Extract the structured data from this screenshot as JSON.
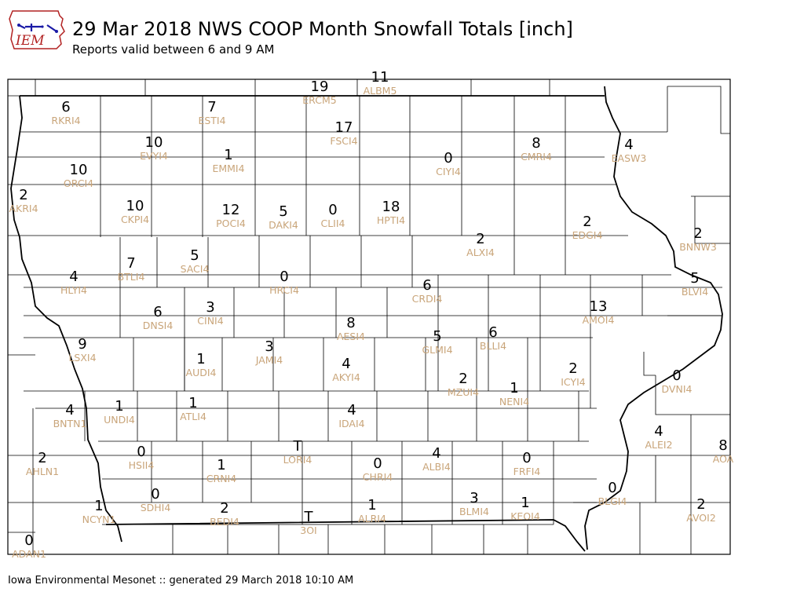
{
  "header": {
    "title": "29 Mar 2018 NWS COOP Month Snowfall Totals [inch]",
    "subtitle": "Reports valid between 6 and 9 AM",
    "logo_text": "IEM"
  },
  "footer": {
    "text": "Iowa Environmental Mesonet :: generated 29 March 2018 10:10 AM"
  },
  "colors": {
    "value": "#000000",
    "station_id": "#c9a57a",
    "logo_red": "#b22222",
    "logo_blue": "#1a1aa6"
  },
  "stations": [
    {
      "value": "19",
      "id": "ERCM5"
    },
    {
      "value": "11",
      "id": "ALBM5"
    },
    {
      "value": "6",
      "id": "RKRI4"
    },
    {
      "value": "7",
      "id": "ESTI4"
    },
    {
      "value": "17",
      "id": "FSCI4"
    },
    {
      "value": "0",
      "id": "CIYI4"
    },
    {
      "value": "8",
      "id": "CMRI4"
    },
    {
      "value": "4",
      "id": "EASW3"
    },
    {
      "value": "10",
      "id": "EVYI4"
    },
    {
      "value": "1",
      "id": "EMMI4"
    },
    {
      "value": "10",
      "id": "ORCI4"
    },
    {
      "value": "2",
      "id": "AKRI4"
    },
    {
      "value": "10",
      "id": "CKPI4"
    },
    {
      "value": "12",
      "id": "POCI4"
    },
    {
      "value": "5",
      "id": "DAKI4"
    },
    {
      "value": "0",
      "id": "CLII4"
    },
    {
      "value": "18",
      "id": "HPTI4"
    },
    {
      "value": "2",
      "id": "EDGI4"
    },
    {
      "value": "2",
      "id": "BNNW3"
    },
    {
      "value": "2",
      "id": "ALXI4"
    },
    {
      "value": "7",
      "id": "BTLI4"
    },
    {
      "value": "5",
      "id": "SACI4"
    },
    {
      "value": "4",
      "id": "HLYI4"
    },
    {
      "value": "0",
      "id": "HRCI4"
    },
    {
      "value": "6",
      "id": "CRDI4"
    },
    {
      "value": "13",
      "id": "AMOI4"
    },
    {
      "value": "5",
      "id": "BLVI4"
    },
    {
      "value": "6",
      "id": "DNSI4"
    },
    {
      "value": "3",
      "id": "CINI4"
    },
    {
      "value": "8",
      "id": "AESI4"
    },
    {
      "value": "9",
      "id": "LSXI4"
    },
    {
      "value": "1",
      "id": "AUDI4"
    },
    {
      "value": "3",
      "id": "JAMI4"
    },
    {
      "value": "5",
      "id": "GLMI4"
    },
    {
      "value": "6",
      "id": "BLLI4"
    },
    {
      "value": "4",
      "id": "AKYI4"
    },
    {
      "value": "2",
      "id": "MZUI4"
    },
    {
      "value": "1",
      "id": "NENI4"
    },
    {
      "value": "2",
      "id": "ICYI4"
    },
    {
      "value": "0",
      "id": "DVNI4"
    },
    {
      "value": "4",
      "id": "BNTN1"
    },
    {
      "value": "1",
      "id": "UNDI4"
    },
    {
      "value": "1",
      "id": "ATLI4"
    },
    {
      "value": "4",
      "id": "IDAI4"
    },
    {
      "value": "4",
      "id": "ALEI2"
    },
    {
      "value": "T",
      "id": "LORI4"
    },
    {
      "value": "0",
      "id": "HSII4"
    },
    {
      "value": "1",
      "id": "CRNI4"
    },
    {
      "value": "0",
      "id": "CHRI4"
    },
    {
      "value": "4",
      "id": "ALBI4"
    },
    {
      "value": "0",
      "id": "FRFI4"
    },
    {
      "value": "8",
      "id": "AOA"
    },
    {
      "value": "2",
      "id": "AHLN1"
    },
    {
      "value": "1",
      "id": "NCYN1"
    },
    {
      "value": "0",
      "id": "SDHI4"
    },
    {
      "value": "2",
      "id": "BEDI4"
    },
    {
      "value": "T",
      "id": "3OI"
    },
    {
      "value": "1",
      "id": "ALRI4"
    },
    {
      "value": "3",
      "id": "BLMI4"
    },
    {
      "value": "1",
      "id": "KEOI4"
    },
    {
      "value": "0",
      "id": "BLGI4"
    },
    {
      "value": "2",
      "id": "AVOI2"
    },
    {
      "value": "0",
      "id": "ADAN1"
    }
  ]
}
